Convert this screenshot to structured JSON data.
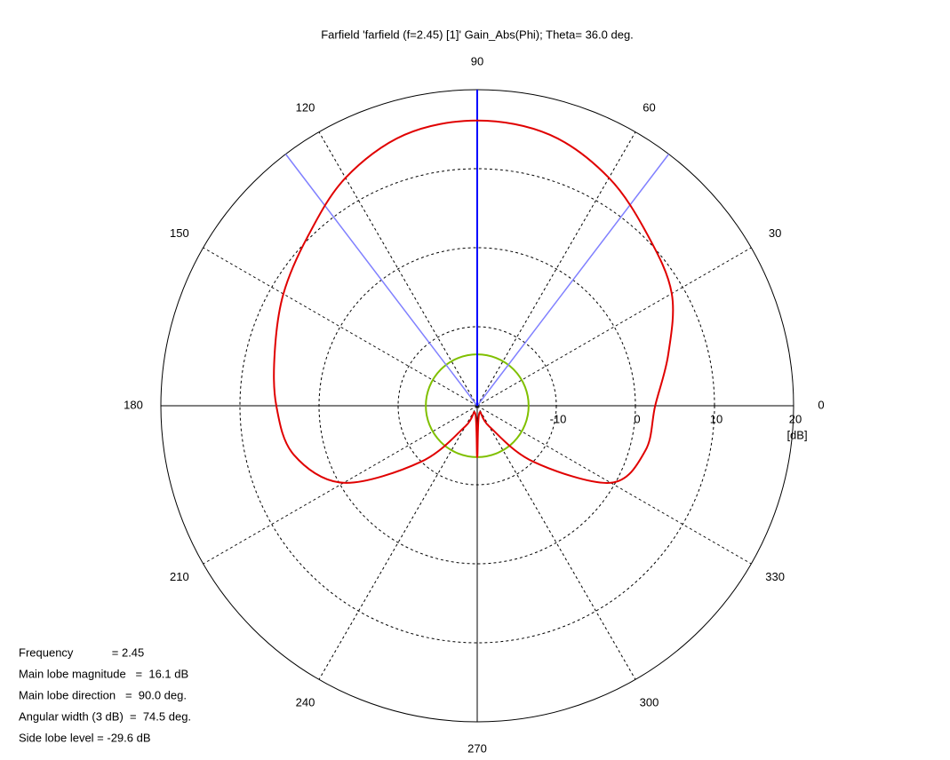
{
  "chart_data": {
    "type": "polar",
    "title": "Farfield 'farfield (f=2.45) [1]' Gain_Abs(Phi); Theta=  36.0 deg.",
    "angles": [
      0,
      15,
      30,
      45,
      60,
      75,
      90,
      105,
      120,
      135,
      150,
      165,
      180,
      195,
      210,
      225,
      240,
      255,
      270,
      285,
      300,
      315,
      330,
      345
    ],
    "series": [
      {
        "color": "#e00000",
        "values": [
          2.5,
          5.0,
          8.4,
          10.5,
          13.3,
          15.5,
          16.1,
          15.5,
          13.3,
          10.3,
          8.3,
          6.5,
          5.4,
          4.0,
          -0.5,
          -10,
          -17,
          -19,
          -13.5,
          -19,
          -17,
          -10,
          -0.5,
          2.0
        ]
      }
    ],
    "rlim": [
      -20,
      20
    ],
    "rticks": [
      -10,
      0,
      10,
      20
    ],
    "r_unit": "[dB]",
    "angle_ticks": [
      0,
      30,
      60,
      90,
      120,
      150,
      180,
      210,
      240,
      270,
      300,
      330
    ],
    "main_lobe_direction": 90,
    "main_lobe_color": "#0000ff",
    "beamwidth": 74.5,
    "beamwidth_color": "#8080ff",
    "side_lobe_circle": -13.5,
    "side_lobe_color": "#80c000",
    "info": [
      "Frequency            = 2.45",
      "Main lobe magnitude   =  16.1 dB",
      "Main lobe direction   =  90.0 deg.",
      "Angular width (3 dB)  =  74.5 deg.",
      "Side lobe level = -29.6 dB"
    ]
  }
}
